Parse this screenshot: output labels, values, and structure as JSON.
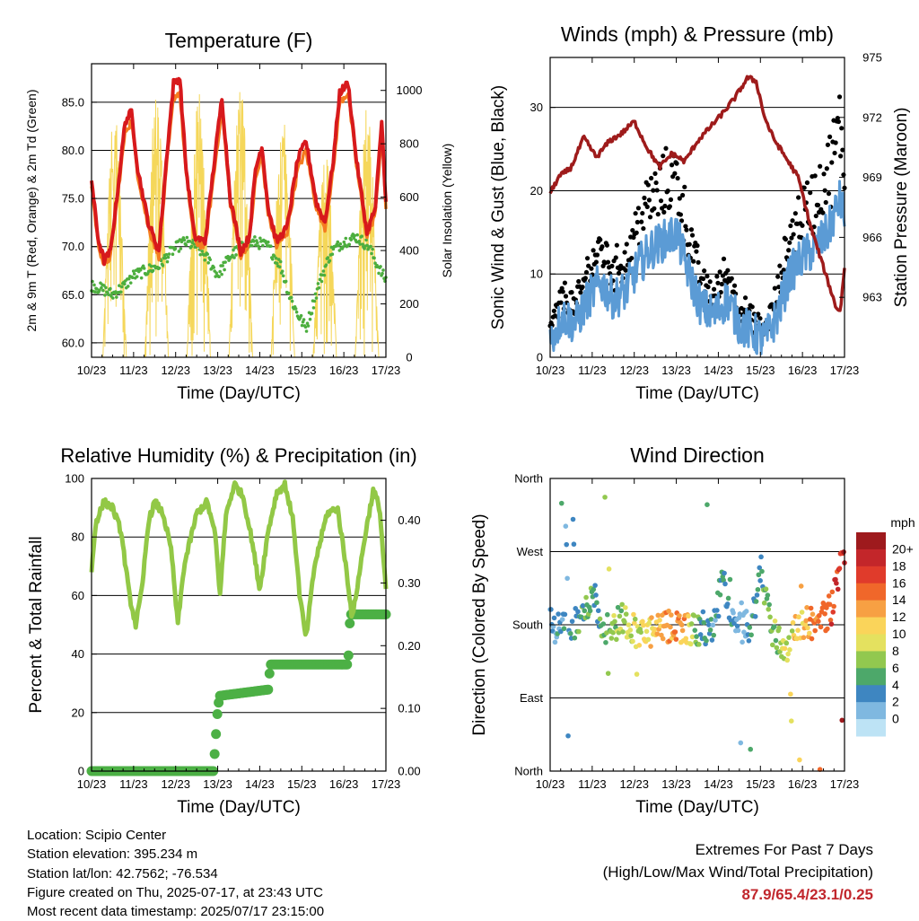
{
  "chart_data": [
    {
      "id": "temperature",
      "type": "line",
      "title": "Temperature (F)",
      "xlabel": "Time (Day/UTC)",
      "ylabel": "2m & 9m T (Red, Orange) & 2m Td (Green)",
      "y2label": "Solar Insolation (Yellow)",
      "x_ticks": [
        "10/23",
        "11/23",
        "12/23",
        "13/23",
        "14/23",
        "15/23",
        "16/23",
        "17/23"
      ],
      "ylim": [
        58.5,
        89.0
      ],
      "y_ticks": [
        "60.0",
        "65.0",
        "70.0",
        "75.0",
        "80.0",
        "85.0"
      ],
      "y2lim": [
        0,
        1100
      ],
      "y2_ticks": [
        "0",
        "200",
        "400",
        "600",
        "800",
        "1000"
      ],
      "grid": "horizontal",
      "series_t2m": {
        "x": [
          0,
          0.15,
          0.3,
          0.45,
          0.6,
          0.8,
          0.95,
          1.1,
          1.35,
          1.6,
          1.8,
          1.95,
          2.1,
          2.25,
          2.45,
          2.7,
          2.95,
          3.1,
          3.3,
          3.55,
          3.75,
          3.9,
          4.05,
          4.2,
          4.4,
          4.65,
          4.9,
          5.1,
          5.35,
          5.55,
          5.75,
          5.9,
          6.1,
          6.3,
          6.55,
          6.75,
          6.9,
          7.0
        ],
        "y": [
          77.0,
          71.0,
          68.5,
          69.5,
          75.0,
          83.0,
          84.0,
          78.0,
          72.5,
          69.5,
          80.0,
          87.0,
          87.5,
          78.0,
          71.0,
          70.5,
          80.0,
          85.5,
          75.0,
          69.5,
          71.0,
          78.0,
          80.5,
          74.0,
          70.5,
          72.0,
          79.0,
          81.0,
          74.5,
          72.5,
          79.0,
          86.0,
          87.0,
          79.0,
          71.5,
          74.0,
          83.0,
          74.5
        ]
      },
      "series_t9m": {
        "x": [
          0,
          0.15,
          0.3,
          0.45,
          0.6,
          0.8,
          0.95,
          1.1,
          1.35,
          1.6,
          1.8,
          1.95,
          2.1,
          2.25,
          2.45,
          2.7,
          2.95,
          3.1,
          3.3,
          3.55,
          3.75,
          3.9,
          4.05,
          4.2,
          4.4,
          4.65,
          4.9,
          5.1,
          5.35,
          5.55,
          5.75,
          5.9,
          6.1,
          6.3,
          6.55,
          6.75,
          6.9,
          7.0
        ],
        "y": [
          76.5,
          70.5,
          68.0,
          69.0,
          74.5,
          82.0,
          83.0,
          77.5,
          72.0,
          69.0,
          79.0,
          85.5,
          86.0,
          77.5,
          70.5,
          70.0,
          79.0,
          84.5,
          74.5,
          69.0,
          70.5,
          77.0,
          79.5,
          73.5,
          70.0,
          71.5,
          78.0,
          80.0,
          74.0,
          72.0,
          78.0,
          85.0,
          86.0,
          78.5,
          71.0,
          73.5,
          82.0,
          74.0
        ]
      },
      "series_td": {
        "x": [
          0,
          0.3,
          0.5,
          0.8,
          1.0,
          1.3,
          1.6,
          1.9,
          2.2,
          2.5,
          2.8,
          3.0,
          3.3,
          3.6,
          3.9,
          4.2,
          4.5,
          4.7,
          4.9,
          5.1,
          5.4,
          5.7,
          6.0,
          6.3,
          6.6,
          6.8,
          7.0
        ],
        "y": [
          66.0,
          65.5,
          65.0,
          66.0,
          67.0,
          67.5,
          68.0,
          69.5,
          70.5,
          70.0,
          68.5,
          67.0,
          69.0,
          70.0,
          70.5,
          70.0,
          68.0,
          65.0,
          63.0,
          61.5,
          66.0,
          69.5,
          70.5,
          71.0,
          70.0,
          68.0,
          66.5
        ]
      },
      "series_solar_peaks": {
        "x": [
          0.55,
          1.55,
          2.55,
          3.55,
          4.55,
          5.55,
          6.55
        ],
        "y": [
          950,
          1000,
          1000,
          1050,
          900,
          800,
          950
        ]
      }
    },
    {
      "id": "winds",
      "type": "scatter",
      "title": "Winds (mph) & Pressure (mb)",
      "xlabel": "Time (Day/UTC)",
      "ylabel": "Sonic Wind & Gust (Blue, Black)",
      "y2label": "Station Pressure (Maroon)",
      "x_ticks": [
        "10/23",
        "11/23",
        "12/23",
        "13/23",
        "14/23",
        "15/23",
        "16/23",
        "17/23"
      ],
      "ylim": [
        0,
        36
      ],
      "y_ticks": [
        "0",
        "10",
        "20",
        "30"
      ],
      "y2lim": [
        960.0,
        975.0
      ],
      "y2_ticks": [
        "963",
        "966",
        "969",
        "972",
        "975"
      ],
      "grid": "horizontal",
      "wind_profile": {
        "x": [
          0,
          0.3,
          0.6,
          0.9,
          1.2,
          1.5,
          1.8,
          2.1,
          2.4,
          2.7,
          3.0,
          3.3,
          3.6,
          3.9,
          4.2,
          4.5,
          4.8,
          5.1,
          5.4,
          5.7,
          6.0,
          6.3,
          6.6,
          6.9,
          7.0
        ],
        "y": [
          2,
          5,
          4,
          7,
          9,
          7,
          8,
          11,
          13,
          14,
          15,
          10,
          6,
          5,
          7,
          4,
          3,
          2,
          5,
          10,
          12,
          13,
          15,
          19,
          17
        ]
      },
      "pressure": {
        "x": [
          0,
          0.2,
          0.5,
          0.8,
          1.1,
          1.4,
          1.7,
          2.0,
          2.3,
          2.6,
          2.9,
          3.2,
          3.5,
          3.8,
          4.1,
          4.4,
          4.7,
          4.9,
          5.1,
          5.3,
          5.6,
          5.9,
          6.2,
          6.5,
          6.8,
          6.9,
          7.0
        ],
        "y": [
          968.2,
          969.0,
          969.5,
          971.0,
          970.0,
          970.8,
          971.2,
          971.8,
          970.5,
          969.5,
          970.2,
          969.8,
          970.8,
          971.5,
          972.2,
          973.0,
          974.0,
          973.8,
          972.0,
          971.0,
          970.0,
          969.0,
          966.5,
          964.5,
          962.5,
          962.3,
          964.5
        ]
      }
    },
    {
      "id": "humidity",
      "type": "line",
      "title": "Relative Humidity (%) & Precipitation (in)",
      "xlabel": "Time (Day/UTC)",
      "ylabel": "Percent & Total Rainfall",
      "x_ticks": [
        "10/23",
        "11/23",
        "12/23",
        "13/23",
        "14/23",
        "15/23",
        "16/23",
        "17/23"
      ],
      "ylim": [
        0,
        100
      ],
      "y_ticks": [
        "0",
        "20",
        "40",
        "60",
        "80",
        "100"
      ],
      "y2lim": [
        0.0,
        0.4667
      ],
      "y2_ticks": [
        "0.00",
        "0.10",
        "0.20",
        "0.30",
        "0.40"
      ],
      "grid": "horizontal",
      "rh": {
        "x": [
          0,
          0.1,
          0.3,
          0.5,
          0.7,
          0.9,
          1.05,
          1.2,
          1.35,
          1.5,
          1.7,
          1.9,
          2.05,
          2.2,
          2.5,
          2.75,
          2.95,
          3.05,
          3.2,
          3.4,
          3.6,
          3.8,
          4.0,
          4.2,
          4.4,
          4.6,
          4.8,
          4.95,
          5.1,
          5.3,
          5.6,
          5.85,
          6.05,
          6.2,
          6.5,
          6.7,
          6.85,
          7.0
        ],
        "y": [
          68,
          85,
          92,
          90,
          82,
          60,
          50,
          62,
          85,
          92,
          88,
          75,
          50,
          70,
          88,
          92,
          80,
          60,
          88,
          98,
          94,
          80,
          62,
          82,
          95,
          98,
          85,
          60,
          45,
          70,
          88,
          90,
          70,
          52,
          80,
          96,
          90,
          62
        ]
      },
      "precip": {
        "x": [
          0,
          2.9,
          2.95,
          3.0,
          3.05,
          4.2,
          4.25,
          6.1,
          6.15,
          7.0
        ],
        "y": [
          0.0,
          0.0,
          0.05,
          0.1,
          0.12,
          0.13,
          0.17,
          0.17,
          0.25,
          0.25
        ]
      }
    },
    {
      "id": "wind_direction",
      "type": "scatter",
      "title": "Wind Direction",
      "xlabel": "Time (Day/UTC)",
      "ylabel": "Direction (Colored By Speed)",
      "x_ticks": [
        "10/23",
        "11/23",
        "12/23",
        "13/23",
        "14/23",
        "15/23",
        "16/23",
        "17/23"
      ],
      "y_ticks": [
        "North",
        "East",
        "South",
        "West",
        "North"
      ],
      "ylim": [
        0,
        360
      ],
      "grid": "horizontal",
      "colorbar_title": "mph",
      "colorbar_labels": [
        "20+",
        "18",
        "16",
        "14",
        "12",
        "10",
        "8",
        "6",
        "4",
        "2",
        "0"
      ],
      "colorbar_colors": [
        "#9e1a1d",
        "#c3262a",
        "#e03b2b",
        "#f0672a",
        "#f7a043",
        "#fad45a",
        "#e4e15f",
        "#92c84f",
        "#4da86a",
        "#3e86c1",
        "#7fb8e0",
        "#bde3f5"
      ],
      "direction_profile": {
        "x": [
          0,
          0.3,
          0.6,
          0.9,
          1.0,
          1.2,
          1.5,
          1.7,
          1.9,
          2.1,
          2.4,
          2.7,
          3.0,
          3.3,
          3.6,
          3.9,
          4.1,
          4.3,
          4.5,
          4.8,
          5.0,
          5.3,
          5.6,
          5.9,
          6.1,
          6.3,
          6.5,
          6.7,
          6.9,
          7.0
        ],
        "y": [
          180,
          175,
          180,
          200,
          230,
          180,
          175,
          190,
          180,
          170,
          170,
          175,
          180,
          175,
          170,
          175,
          240,
          180,
          175,
          180,
          250,
          170,
          150,
          180,
          185,
          180,
          190,
          200,
          250,
          275
        ]
      }
    }
  ],
  "info": {
    "location": "Location: Scipio Center",
    "elevation": "Station elevation: 395.234 m",
    "latlon": "Station lat/lon: 42.7562; -76.534",
    "created": "Figure created on Thu, 2025-07-17, at 23:43 UTC",
    "latest": "Most recent data timestamp: 2025/07/17 23:15:00"
  },
  "extremes": {
    "title": "Extremes For Past 7 Days",
    "subtitle": "(High/Low/Max Wind/Total Precipitation)",
    "values": "87.9/65.4/23.1/0.25"
  },
  "colors": {
    "t2m": "#d7191c",
    "t9m": "#f47c20",
    "td": "#4cae3e",
    "solar": "#f5d75a",
    "wind": "#5b9bd5",
    "gust": "#000000",
    "pressure": "#9e1b1b",
    "rh": "#92c846",
    "precip": "#4cb045"
  }
}
